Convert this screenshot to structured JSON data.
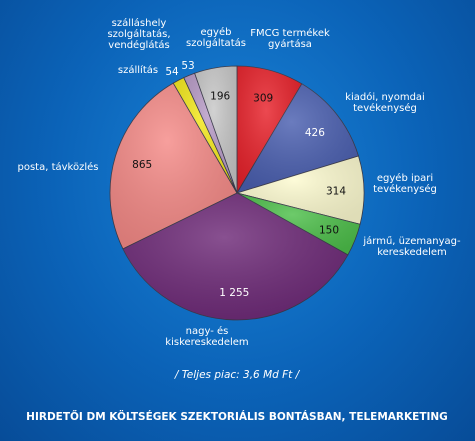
{
  "chart_data": {
    "type": "pie",
    "unit": "",
    "slices": [
      {
        "label": "FMCG termékek gyártása",
        "lines": [
          "FMCG termékek",
          "gyártása"
        ],
        "value": 309,
        "value_text": "309",
        "color": "#e8212a",
        "value_color": "#111111"
      },
      {
        "label": "kiadói, nyomdai tevékenység",
        "lines": [
          "kiadói, nyomdai",
          "tevékenység"
        ],
        "value": 426,
        "value_text": "426",
        "color": "#4a5fb0",
        "value_color": "#ffffff"
      },
      {
        "label": "egyéb ipari tevékenység",
        "lines": [
          "egyéb ipari",
          "tevékenység"
        ],
        "value": 314,
        "value_text": "314",
        "color": "#fdfbd0",
        "value_color": "#111111"
      },
      {
        "label": "jármű, üzemanyag-kereskedelem",
        "lines": [
          "jármű, üzemanyag-",
          "kereskedelem"
        ],
        "value": 150,
        "value_text": "150",
        "color": "#4dbf4a",
        "value_color": "#111111"
      },
      {
        "label": "nagy- és kiskereskedelem",
        "lines": [
          "nagy- és",
          "kiskereskedelem"
        ],
        "value": 1255,
        "value_text": "1 255",
        "color": "#6e2a78",
        "value_color": "#ffffff"
      },
      {
        "label": "posta, távközlés",
        "lines": [
          "posta, távközlés"
        ],
        "value": 865,
        "value_text": "865",
        "color": "#f58a87",
        "value_color": "#111111"
      },
      {
        "label": "szállítás",
        "lines": [
          "szállítás"
        ],
        "value": 54,
        "value_text": "54",
        "color": "#f3e81a",
        "value_color": "#ffffff"
      },
      {
        "label": "szálláshely szolgáltatás, vendéglátás",
        "lines": [
          "szálláshely",
          "szolgáltatás,",
          "vendéglátás"
        ],
        "value": 53,
        "value_text": "53",
        "color": "#b79ac6",
        "value_color": "#ffffff"
      },
      {
        "label": "egyéb szolgáltatás",
        "lines": [
          "egyéb",
          "szolgáltatás"
        ],
        "value": 196,
        "value_text": "196",
        "color": "#c8c8c8",
        "value_color": "#111111"
      }
    ],
    "total_text": "/ Teljes piac: 3,6 Md Ft /",
    "title": "HIRDETŐI DM KÖLTSÉGEK SZEKTORIÁLIS BONTÁSBAN, TELEMARKETING"
  }
}
